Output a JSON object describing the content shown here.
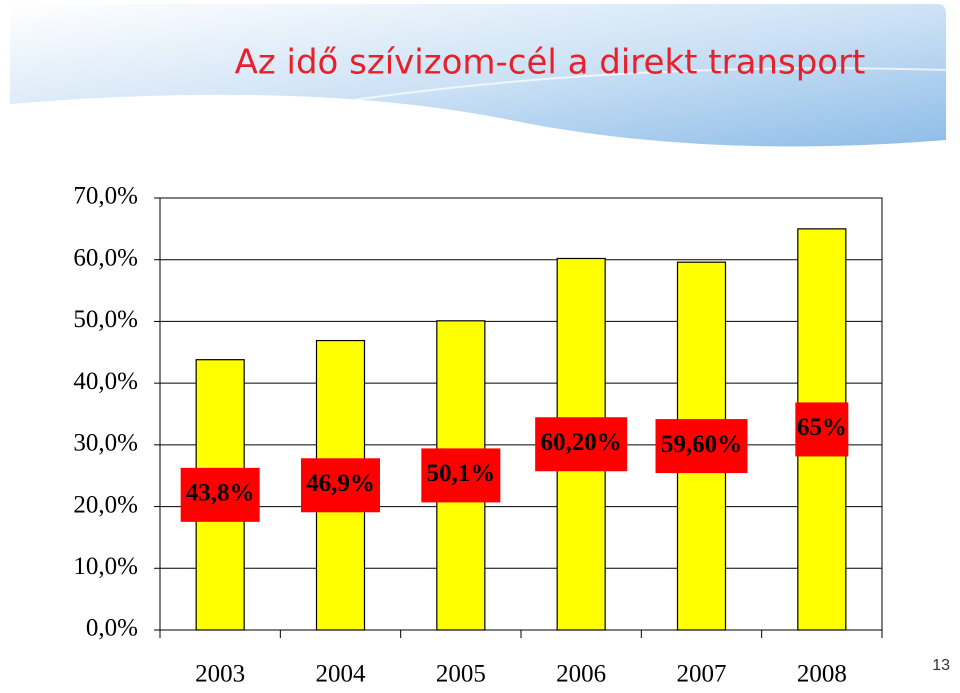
{
  "chart_data": {
    "type": "bar",
    "title": "Az idő szívizom-cél a direkt transport",
    "categories": [
      "2003",
      "2004",
      "2005",
      "2006",
      "2007",
      "2008"
    ],
    "values": [
      43.8,
      46.9,
      50.1,
      60.2,
      59.6,
      65
    ],
    "value_labels": [
      "43,8%",
      "46,9%",
      "50,1%",
      "60,20%",
      "59,60%",
      "65%"
    ],
    "color": "#ffff00",
    "label_color": "#ff0000",
    "ylim": [
      0,
      70
    ],
    "yticks": [
      {
        "value": 0,
        "label": "0,0%"
      },
      {
        "value": 10,
        "label": "10,0%"
      },
      {
        "value": 20,
        "label": "20,0%"
      },
      {
        "value": 30,
        "label": "30,0%"
      },
      {
        "value": 40,
        "label": "40,0%"
      },
      {
        "value": 50,
        "label": "50,0%"
      },
      {
        "value": 60,
        "label": "60,0%"
      },
      {
        "value": 70,
        "label": "70,0%"
      }
    ],
    "grid": true
  },
  "page_number": "13"
}
